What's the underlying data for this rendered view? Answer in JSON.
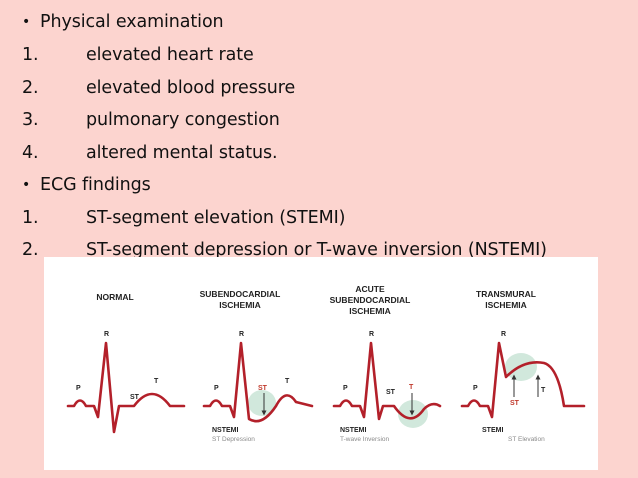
{
  "slide": {
    "bg_color": "#fcd4cf",
    "items": [
      {
        "type": "bullet",
        "marker": "•",
        "text": "Physical examination"
      },
      {
        "type": "numbered",
        "marker": "1.",
        "text": "elevated heart rate"
      },
      {
        "type": "numbered",
        "marker": "2.",
        "text": "elevated blood pressure"
      },
      {
        "type": "numbered",
        "marker": "3.",
        "text": "pulmonary congestion"
      },
      {
        "type": "numbered",
        "marker": "4.",
        "text": "altered mental status."
      },
      {
        "type": "bullet",
        "marker": "•",
        "text": "ECG findings"
      },
      {
        "type": "numbered",
        "marker": "1.",
        "text": "ST-segment elevation (STEMI)"
      },
      {
        "type": "numbered",
        "marker": "2.",
        "text": "ST-segment depression or T-wave inversion (NSTEMI)"
      }
    ]
  },
  "figure": {
    "trace_color": "#b3202a",
    "highlight_color": "#c6e2d3",
    "panels": [
      {
        "title_line1": "NORMAL",
        "title_line2": "",
        "title_line3": "",
        "r": "R",
        "p": "P",
        "st": "ST",
        "t": "T",
        "type_label": "",
        "type_sub": ""
      },
      {
        "title_line1": "SUBENDOCARDIAL",
        "title_line2": "ISCHEMIA",
        "title_line3": "",
        "r": "R",
        "p": "P",
        "st": "ST",
        "t": "T",
        "type_label": "NSTEMI",
        "type_sub": "ST Depression"
      },
      {
        "title_line1": "ACUTE",
        "title_line2": "SUBENDOCARDIAL",
        "title_line3": "ISCHEMIA",
        "r": "R",
        "p": "P",
        "st": "ST",
        "t": "T",
        "type_label": "NSTEMI",
        "type_sub": "T-wave Inversion"
      },
      {
        "title_line1": "TRANSMURAL",
        "title_line2": "ISCHEMIA",
        "title_line3": "",
        "r": "R",
        "p": "P",
        "st": "ST",
        "t": "T",
        "type_label": "STEMI",
        "type_sub": "ST Elevation"
      }
    ]
  }
}
